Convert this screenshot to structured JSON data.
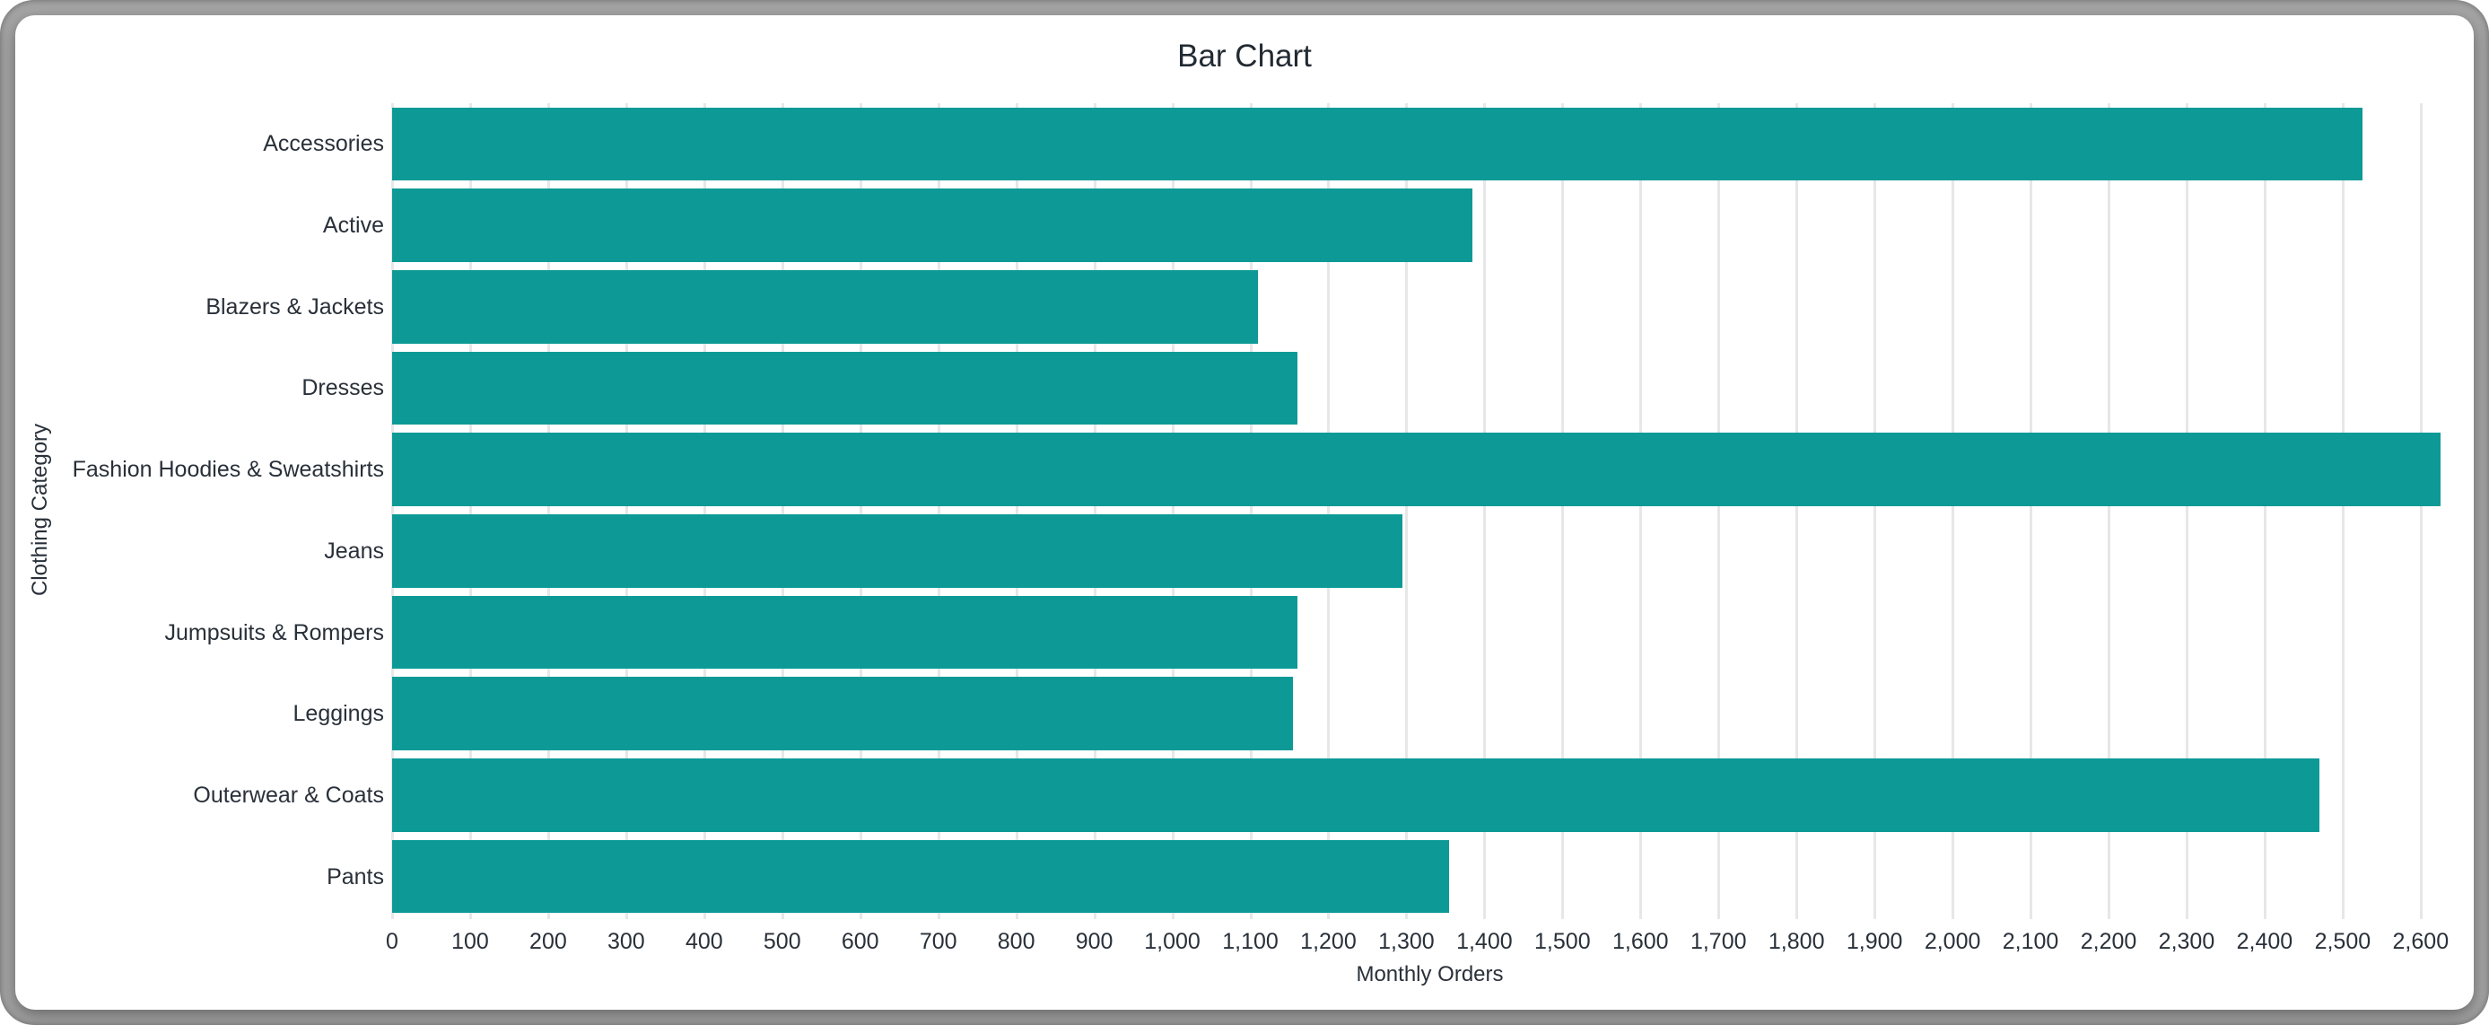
{
  "window": {
    "frame_color": "#a6a6a6",
    "card_color": "#ffffff"
  },
  "chart_data": {
    "type": "bar",
    "orientation": "horizontal",
    "title": "Bar Chart",
    "xlabel": "Monthly Orders",
    "ylabel": "Clothing Category",
    "categories": [
      "Accessories",
      "Active",
      "Blazers & Jackets",
      "Dresses",
      "Fashion Hoodies & Sweatshirts",
      "Jeans",
      "Jumpsuits & Rompers",
      "Leggings",
      "Outerwear & Coats",
      "Pants"
    ],
    "values": [
      2525,
      1385,
      1110,
      1160,
      2625,
      1295,
      1160,
      1155,
      2470,
      1355
    ],
    "xlim": [
      0,
      2660
    ],
    "xtick_min": 0,
    "xtick_max": 2600,
    "xtick_step": 100,
    "grid": true,
    "legend": "none",
    "bar_color": "#0d9a96",
    "gridline_color": "#e5e7e9",
    "text_color": "#293039",
    "tick_label_format": "thousands-comma"
  }
}
